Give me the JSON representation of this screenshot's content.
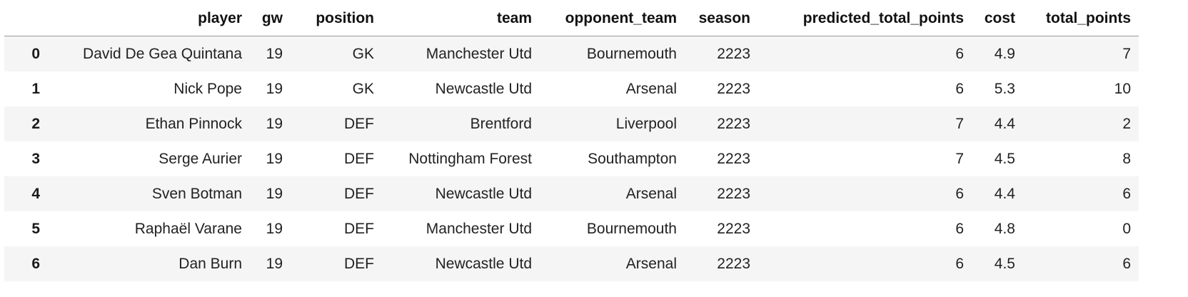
{
  "table": {
    "columns": [
      "",
      "player",
      "gw",
      "position",
      "team",
      "opponent_team",
      "season",
      "predicted_total_points",
      "cost",
      "total_points"
    ],
    "rows": [
      {
        "index": "0",
        "player": "David De Gea Quintana",
        "gw": "19",
        "position": "GK",
        "team": "Manchester Utd",
        "opponent_team": "Bournemouth",
        "season": "2223",
        "predicted_total_points": "6",
        "cost": "4.9",
        "total_points": "7"
      },
      {
        "index": "1",
        "player": "Nick Pope",
        "gw": "19",
        "position": "GK",
        "team": "Newcastle Utd",
        "opponent_team": "Arsenal",
        "season": "2223",
        "predicted_total_points": "6",
        "cost": "5.3",
        "total_points": "10"
      },
      {
        "index": "2",
        "player": "Ethan Pinnock",
        "gw": "19",
        "position": "DEF",
        "team": "Brentford",
        "opponent_team": "Liverpool",
        "season": "2223",
        "predicted_total_points": "7",
        "cost": "4.4",
        "total_points": "2"
      },
      {
        "index": "3",
        "player": "Serge Aurier",
        "gw": "19",
        "position": "DEF",
        "team": "Nottingham Forest",
        "opponent_team": "Southampton",
        "season": "2223",
        "predicted_total_points": "7",
        "cost": "4.5",
        "total_points": "8"
      },
      {
        "index": "4",
        "player": "Sven Botman",
        "gw": "19",
        "position": "DEF",
        "team": "Newcastle Utd",
        "opponent_team": "Arsenal",
        "season": "2223",
        "predicted_total_points": "6",
        "cost": "4.4",
        "total_points": "6"
      },
      {
        "index": "5",
        "player": "Raphaël Varane",
        "gw": "19",
        "position": "DEF",
        "team": "Manchester Utd",
        "opponent_team": "Bournemouth",
        "season": "2223",
        "predicted_total_points": "6",
        "cost": "4.8",
        "total_points": "0"
      },
      {
        "index": "6",
        "player": "Dan Burn",
        "gw": "19",
        "position": "DEF",
        "team": "Newcastle Utd",
        "opponent_team": "Arsenal",
        "season": "2223",
        "predicted_total_points": "6",
        "cost": "4.5",
        "total_points": "6"
      }
    ]
  }
}
